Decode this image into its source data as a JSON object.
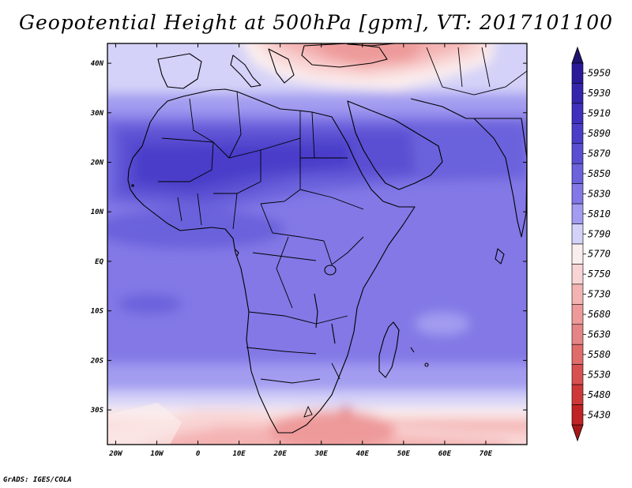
{
  "title": "Geopotential Height at 500hPa [gpm], VT: 2017101100",
  "footer": "GrADS: IGES/COLA",
  "map": {
    "region": "Africa",
    "variable": "Geopotential Height",
    "level": "500hPa",
    "units": "gpm",
    "valid_time": "2017101100",
    "lon_range": [
      -22,
      80
    ],
    "lat_range": [
      -37,
      44
    ],
    "x_ticks": [
      {
        "lon": -20,
        "label": "20W"
      },
      {
        "lon": -10,
        "label": "10W"
      },
      {
        "lon": 0,
        "label": "0"
      },
      {
        "lon": 10,
        "label": "10E"
      },
      {
        "lon": 20,
        "label": "20E"
      },
      {
        "lon": 30,
        "label": "30E"
      },
      {
        "lon": 40,
        "label": "40E"
      },
      {
        "lon": 50,
        "label": "50E"
      },
      {
        "lon": 60,
        "label": "60E"
      },
      {
        "lon": 70,
        "label": "70E"
      }
    ],
    "y_ticks": [
      {
        "lat": 40,
        "label": "40N"
      },
      {
        "lat": 30,
        "label": "30N"
      },
      {
        "lat": 20,
        "label": "20N"
      },
      {
        "lat": 10,
        "label": "10N"
      },
      {
        "lat": 0,
        "label": "EQ"
      },
      {
        "lat": -10,
        "label": "10S"
      },
      {
        "lat": -20,
        "label": "20S"
      },
      {
        "lat": -30,
        "label": "30S"
      }
    ]
  },
  "colorbar": {
    "levels": [
      {
        "label": "5950",
        "color": "#2a1a9a"
      },
      {
        "label": "5930",
        "color": "#3525ad"
      },
      {
        "label": "5910",
        "color": "#3f30bd"
      },
      {
        "label": "5890",
        "color": "#4a3ec9"
      },
      {
        "label": "5870",
        "color": "#5a4fd2"
      },
      {
        "label": "5850",
        "color": "#6b62dc"
      },
      {
        "label": "5830",
        "color": "#8378e6"
      },
      {
        "label": "5810",
        "color": "#a39cf0"
      },
      {
        "label": "5790",
        "color": "#d4d2f8"
      },
      {
        "label": "5770",
        "color": "#fbeeee"
      },
      {
        "label": "5750",
        "color": "#f9d4d4"
      },
      {
        "label": "5730",
        "color": "#f4b3b3"
      },
      {
        "label": "5680",
        "color": "#ee9a9a"
      },
      {
        "label": "5630",
        "color": "#e58585"
      },
      {
        "label": "5580",
        "color": "#e06c6c"
      },
      {
        "label": "5530",
        "color": "#d95050"
      },
      {
        "label": "5480",
        "color": "#cf3838"
      },
      {
        "label": "5430",
        "color": "#c02424"
      }
    ],
    "top_arrow_color": "#1f1470",
    "bottom_arrow_color": "#a81818"
  }
}
